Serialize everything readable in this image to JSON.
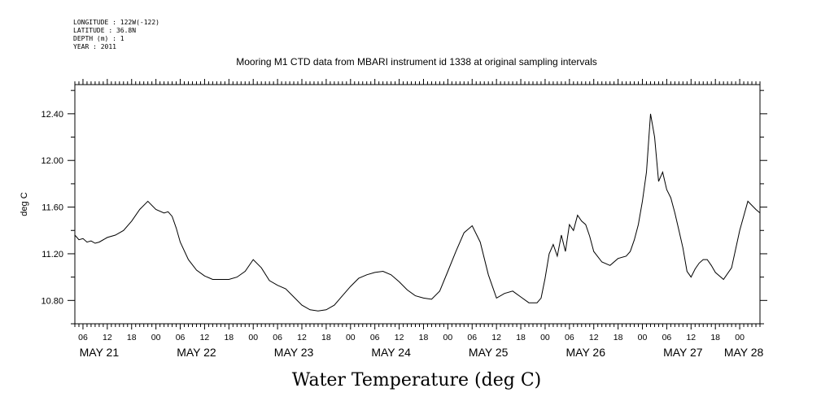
{
  "header": {
    "lines": [
      "LONGITUDE : 122W(-122)",
      "LATITUDE : 36.8N",
      "DEPTH (m) : 1",
      "YEAR : 2011"
    ]
  },
  "chart_data": {
    "type": "line",
    "title": "Mooring M1 CTD data from MBARI instrument id 1338 at original sampling intervals",
    "xlabel": "Water Temperature (deg C)",
    "ylabel": "deg C",
    "x_unit": "hours since MAY 21 00:00 (2011)",
    "xlim": [
      4,
      173
    ],
    "ylim": [
      10.6,
      12.65
    ],
    "y_ticks": [
      10.8,
      11.2,
      11.6,
      12.0,
      12.4
    ],
    "y_tick_labels": [
      "10.80",
      "11.20",
      "11.60",
      "12.00",
      "12.40"
    ],
    "x_hour_labels": [
      "06",
      "12",
      "18",
      "00",
      "06",
      "12",
      "18",
      "00",
      "06",
      "12",
      "18",
      "00",
      "06",
      "12",
      "18",
      "00",
      "06",
      "12",
      "18",
      "00",
      "06",
      "12",
      "18",
      "00",
      "06",
      "12",
      "18",
      "00"
    ],
    "x_day_labels": [
      "MAY 21",
      "MAY 22",
      "MAY 23",
      "MAY 24",
      "MAY 25",
      "MAY 26",
      "MAY 27",
      "MAY 28"
    ],
    "line_color": "#000000",
    "series": [
      {
        "x": [
          4,
          5,
          6,
          7,
          8,
          9,
          10,
          12,
          14,
          16,
          18,
          20,
          22,
          24,
          26,
          27,
          28,
          29,
          30,
          32,
          34,
          36,
          38,
          40,
          42,
          44,
          46,
          48,
          50,
          52,
          54,
          56,
          58,
          60,
          62,
          64,
          66,
          68,
          70,
          72,
          74,
          76,
          78,
          80,
          82,
          84,
          86,
          88,
          90,
          92,
          94,
          96,
          98,
          100,
          102,
          104,
          106,
          108,
          110,
          112,
          114,
          116,
          118,
          119,
          120,
          121,
          122,
          123,
          124,
          125,
          126,
          127,
          128,
          129,
          130,
          131,
          132,
          134,
          136,
          138,
          140,
          141,
          142,
          143,
          144,
          145,
          146,
          147,
          148,
          149,
          150,
          151,
          152,
          153,
          154,
          155,
          156,
          157,
          158,
          159,
          160,
          161,
          162,
          164,
          166,
          168,
          170,
          172,
          173
        ],
        "y": [
          11.36,
          11.32,
          11.33,
          11.3,
          11.31,
          11.29,
          11.3,
          11.34,
          11.36,
          11.4,
          11.48,
          11.58,
          11.65,
          11.58,
          11.55,
          11.56,
          11.52,
          11.42,
          11.3,
          11.15,
          11.06,
          11.01,
          10.98,
          10.98,
          10.98,
          11.0,
          11.05,
          11.15,
          11.08,
          10.97,
          10.93,
          10.9,
          10.83,
          10.76,
          10.72,
          10.71,
          10.72,
          10.76,
          10.84,
          10.92,
          10.99,
          11.02,
          11.04,
          11.05,
          11.02,
          10.96,
          10.89,
          10.84,
          10.82,
          10.81,
          10.88,
          11.05,
          11.22,
          11.38,
          11.44,
          11.3,
          11.02,
          10.82,
          10.86,
          10.88,
          10.83,
          10.78,
          10.78,
          10.82,
          10.99,
          11.2,
          11.28,
          11.18,
          11.36,
          11.22,
          11.45,
          11.4,
          11.53,
          11.48,
          11.45,
          11.35,
          11.22,
          11.13,
          11.1,
          11.16,
          11.18,
          11.22,
          11.32,
          11.45,
          11.65,
          11.9,
          12.4,
          12.2,
          11.82,
          11.9,
          11.75,
          11.68,
          11.55,
          11.4,
          11.25,
          11.05,
          11.0,
          11.07,
          11.12,
          11.15,
          11.15,
          11.1,
          11.04,
          10.98,
          11.08,
          11.4,
          11.65,
          11.58,
          11.55
        ]
      }
    ]
  }
}
